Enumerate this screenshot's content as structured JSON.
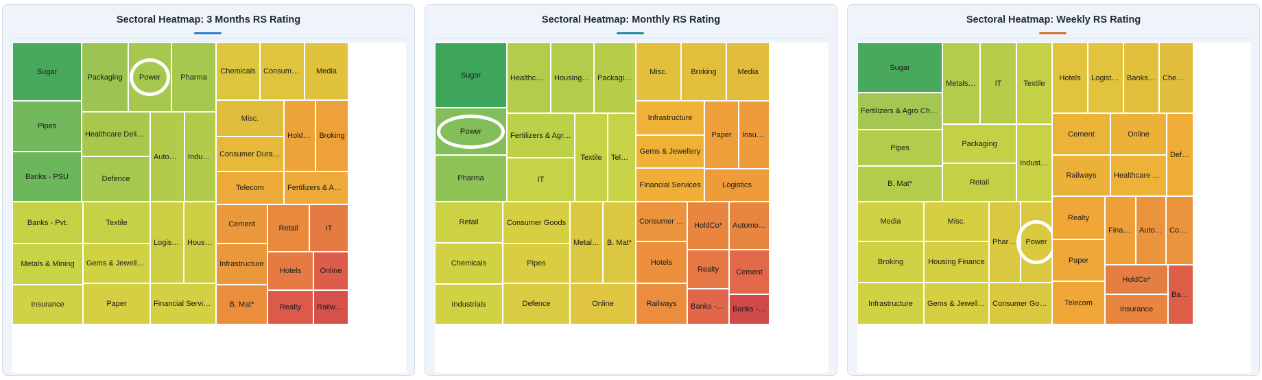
{
  "chart_data": [
    {
      "type": "treemap",
      "title": "Sectoral Heatmap: 3 Months RS Rating",
      "accent": "#2d7fc1",
      "highlighted": "Power",
      "tiles": [
        {
          "label": "Sugar",
          "color": "#48a85b"
        },
        {
          "label": "Packaging",
          "color": "#9cc452"
        },
        {
          "label": "Power",
          "color": "#a6c84e"
        },
        {
          "label": "Pharma",
          "color": "#a6c84e"
        },
        {
          "label": "Pipes",
          "color": "#70b85a"
        },
        {
          "label": "Banks - PSU",
          "color": "#6cb65b"
        },
        {
          "label": "Healthcare Delivery",
          "color": "#a8c84d"
        },
        {
          "label": "Defence",
          "color": "#a6c84e"
        },
        {
          "label": "Automobile",
          "color": "#b3cb4b"
        },
        {
          "label": "Industrials",
          "color": "#b3cb4b"
        },
        {
          "label": "Banks - Pvt.",
          "color": "#c5d246"
        },
        {
          "label": "Metals & Mining",
          "color": "#c8d345"
        },
        {
          "label": "Insurance",
          "color": "#cfd244"
        },
        {
          "label": "Textile",
          "color": "#c6d245"
        },
        {
          "label": "Gems & Jewellery",
          "color": "#cfd243"
        },
        {
          "label": "Paper",
          "color": "#d6cf42"
        },
        {
          "label": "Logistics",
          "color": "#cccf44"
        },
        {
          "label": "Housing Finance",
          "color": "#cccf44"
        },
        {
          "label": "Financial Services",
          "color": "#d4cf43"
        },
        {
          "label": "Chemicals",
          "color": "#ddc53d"
        },
        {
          "label": "Consumer Goods",
          "color": "#dfc43d"
        },
        {
          "label": "Media",
          "color": "#e1c23c"
        },
        {
          "label": "Misc.",
          "color": "#e0bd3c"
        },
        {
          "label": "Consumer Durables",
          "color": "#e8b938"
        },
        {
          "label": "HoldCo*",
          "color": "#eda33a"
        },
        {
          "label": "Broking",
          "color": "#eea13a"
        },
        {
          "label": "Telecom",
          "color": "#eeaa38"
        },
        {
          "label": "Fertilizers & Agro Chemicals",
          "color": "#eeaa38"
        },
        {
          "label": "Cement",
          "color": "#ea9a3c"
        },
        {
          "label": "Infrastructure",
          "color": "#eb983d"
        },
        {
          "label": "B. Mat*",
          "color": "#ea8e3e"
        },
        {
          "label": "Retail",
          "color": "#e8893e"
        },
        {
          "label": "IT",
          "color": "#e57b42"
        },
        {
          "label": "Hotels",
          "color": "#e57a42"
        },
        {
          "label": "Online",
          "color": "#de5d4a"
        },
        {
          "label": "Realty",
          "color": "#dd5a4a"
        },
        {
          "label": "Railways",
          "color": "#d5514a"
        }
      ]
    },
    {
      "type": "treemap",
      "title": "Sectoral Heatmap: Monthly RS Rating",
      "accent": "#1c8aa0",
      "highlighted": "Power",
      "tiles": [
        {
          "label": "Sugar",
          "color": "#3ea65a"
        },
        {
          "label": "Power",
          "color": "#84be5b"
        },
        {
          "label": "Pharma",
          "color": "#90c356"
        },
        {
          "label": "Healthcare Delivery",
          "color": "#b2cc4b"
        },
        {
          "label": "Housing Finance",
          "color": "#b3cc4a"
        },
        {
          "label": "Packaging",
          "color": "#b7cd49"
        },
        {
          "label": "Fertilizers & Agro Chemicals",
          "color": "#bcd048"
        },
        {
          "label": "Textile",
          "color": "#c6d346"
        },
        {
          "label": "Telecom",
          "color": "#c6d346"
        },
        {
          "label": "IT",
          "color": "#c6d346"
        },
        {
          "label": "Retail",
          "color": "#cdd244"
        },
        {
          "label": "Chemicals",
          "color": "#d0d244"
        },
        {
          "label": "Industrials",
          "color": "#d0d244"
        },
        {
          "label": "Consumer Goods",
          "color": "#d7cf42"
        },
        {
          "label": "Pipes",
          "color": "#d9cd42"
        },
        {
          "label": "Defence",
          "color": "#d9cb42"
        },
        {
          "label": "Metals & Mining",
          "color": "#dcc840"
        },
        {
          "label": "B. Mat*",
          "color": "#dcc840"
        },
        {
          "label": "Online",
          "color": "#dfc540"
        },
        {
          "label": "Misc.",
          "color": "#e2c03c"
        },
        {
          "label": "Broking",
          "color": "#e2c03c"
        },
        {
          "label": "Media",
          "color": "#e2bd3c"
        },
        {
          "label": "Infrastructure",
          "color": "#efb237"
        },
        {
          "label": "Gems & Jewellery",
          "color": "#efb237"
        },
        {
          "label": "Financial Services",
          "color": "#f0ad37"
        },
        {
          "label": "Paper",
          "color": "#ee9f3a"
        },
        {
          "label": "Insurance",
          "color": "#ee9b3b"
        },
        {
          "label": "Logistics",
          "color": "#ee9b3b"
        },
        {
          "label": "Consumer Durables",
          "color": "#eb943d"
        },
        {
          "label": "HoldCo*",
          "color": "#e8863f"
        },
        {
          "label": "Automobile",
          "color": "#e8863f"
        },
        {
          "label": "Hotels",
          "color": "#ec903d"
        },
        {
          "label": "Railways",
          "color": "#eb8c3e"
        },
        {
          "label": "Realty",
          "color": "#e57844"
        },
        {
          "label": "Cement",
          "color": "#e2684a"
        },
        {
          "label": "Banks - Pvt.",
          "color": "#e1664a"
        },
        {
          "label": "Banks - PSU",
          "color": "#d04a47"
        }
      ]
    },
    {
      "type": "treemap",
      "title": "Sectoral Heatmap: Weekly RS Rating",
      "accent": "#d3702c",
      "highlighted": "Power",
      "tiles": [
        {
          "label": "Sugar",
          "color": "#48a85b"
        },
        {
          "label": "Fertilizers & Agro Chemicals",
          "color": "#a3c851"
        },
        {
          "label": "Pipes",
          "color": "#b2cc4b"
        },
        {
          "label": "B. Mat*",
          "color": "#b3cc4b"
        },
        {
          "label": "Metals & Mining",
          "color": "#b3cc4b"
        },
        {
          "label": "IT",
          "color": "#b7cd49"
        },
        {
          "label": "Textile",
          "color": "#c2d146"
        },
        {
          "label": "Packaging",
          "color": "#c2d146"
        },
        {
          "label": "Retail",
          "color": "#c4d146"
        },
        {
          "label": "Industrials",
          "color": "#c9d245"
        },
        {
          "label": "Media",
          "color": "#cfd244"
        },
        {
          "label": "Broking",
          "color": "#d0d244"
        },
        {
          "label": "Infrastructure",
          "color": "#d0d244"
        },
        {
          "label": "Misc.",
          "color": "#d6cf42"
        },
        {
          "label": "Housing Finance",
          "color": "#d6cf42"
        },
        {
          "label": "Gems & Jewellery",
          "color": "#d6cf42"
        },
        {
          "label": "Pharma",
          "color": "#dac940"
        },
        {
          "label": "Power",
          "color": "#dac940"
        },
        {
          "label": "Consumer Goods",
          "color": "#dac940"
        },
        {
          "label": "Hotels",
          "color": "#e1c33d"
        },
        {
          "label": "Logistics",
          "color": "#e1c33d"
        },
        {
          "label": "Banks - PSU",
          "color": "#e1c03c"
        },
        {
          "label": "Chemicals",
          "color": "#e1bd3c"
        },
        {
          "label": "Cement",
          "color": "#eab439"
        },
        {
          "label": "Online",
          "color": "#ecb139"
        },
        {
          "label": "Railways",
          "color": "#ecb139"
        },
        {
          "label": "Healthcare Delivery",
          "color": "#efb238"
        },
        {
          "label": "Defence",
          "color": "#f0ad37"
        },
        {
          "label": "Realty",
          "color": "#f1a737"
        },
        {
          "label": "Paper",
          "color": "#f1a737"
        },
        {
          "label": "Telecom",
          "color": "#f1a737"
        },
        {
          "label": "Financial Services",
          "color": "#eda03a"
        },
        {
          "label": "Automobile",
          "color": "#ea943d"
        },
        {
          "label": "Consumer Durables",
          "color": "#ea943d"
        },
        {
          "label": "HoldCo*",
          "color": "#e57e42"
        },
        {
          "label": "Insurance",
          "color": "#e8863f"
        },
        {
          "label": "Banks - Pvt.",
          "color": "#dd5e49"
        }
      ]
    }
  ]
}
